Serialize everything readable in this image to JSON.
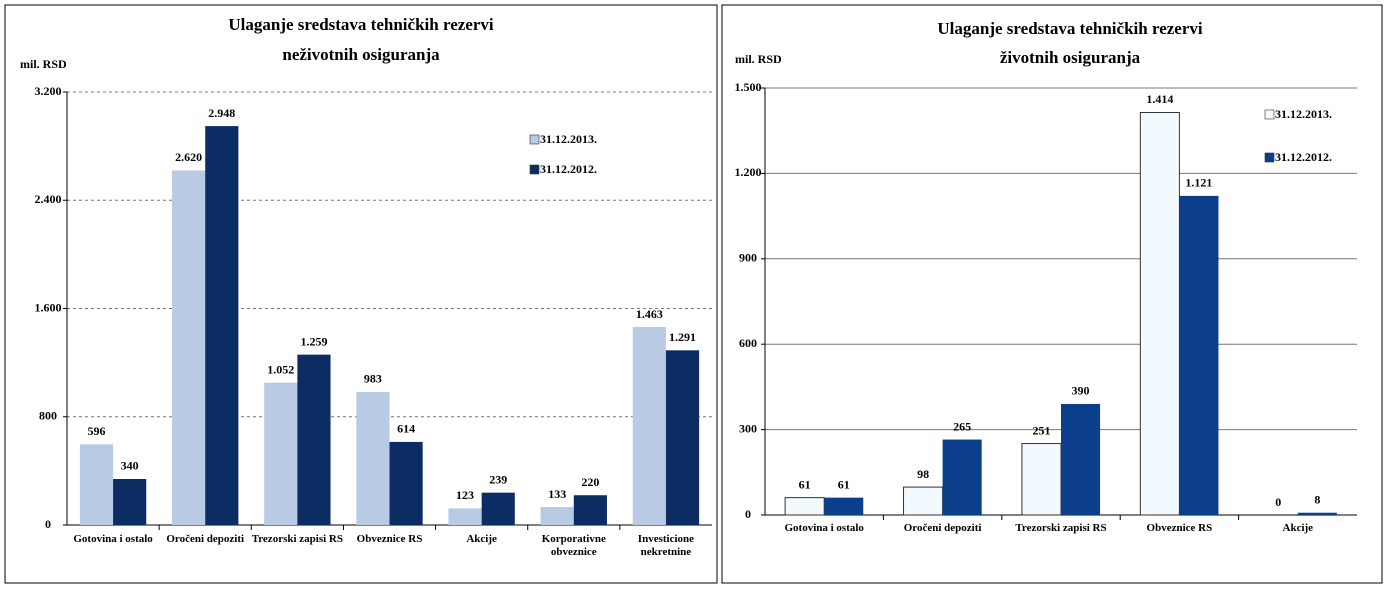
{
  "chart_data": [
    {
      "type": "bar",
      "title": "Ulaganje sredstava tehničkih rezervi",
      "subtitle": "neživotnih osiguranja",
      "y_axis_label": "mil. RSD",
      "categories": [
        "Gotovina i ostalo",
        "Oročeni depoziti",
        "Trezorski zapisi RS",
        "Obveznice RS",
        "Akcije",
        "Korporativne obveznice",
        "Investicione nekretnine"
      ],
      "series": [
        {
          "name": "31.12.2013.",
          "color": "#b9cae4",
          "values": [
            596,
            2620,
            1052,
            983,
            123,
            133,
            1463
          ],
          "value_labels": [
            "596",
            "2.620",
            "1.052",
            "983",
            "123",
            "133",
            "1.463"
          ]
        },
        {
          "name": "31.12.2012.",
          "color": "#0c2d63",
          "values": [
            340,
            2948,
            1259,
            614,
            239,
            220,
            1291
          ],
          "value_labels": [
            "340",
            "2.948",
            "1.259",
            "614",
            "239",
            "220",
            "1.291"
          ]
        }
      ],
      "ylim": [
        0,
        3200
      ],
      "yticks": [
        0,
        800,
        {
          "value": 1600,
          "label": "1.600"
        },
        {
          "value": 2400,
          "label": "2.400"
        },
        {
          "value": 3200,
          "label": "3.200"
        }
      ],
      "grid": true,
      "legend": "upper right"
    },
    {
      "type": "bar",
      "title": "Ulaganje sredstava tehničkih rezervi",
      "subtitle": "životnih osiguranja",
      "y_axis_label": "mil. RSD",
      "categories": [
        "Gotovina i ostalo",
        "Oročeni depoziti",
        "Trezorski zapisi RS",
        "Obveznice RS",
        "Akcije"
      ],
      "series": [
        {
          "name": "31.12.2013.",
          "color": "#f3faff",
          "values": [
            61,
            98,
            251,
            1414,
            0
          ],
          "value_labels": [
            "61",
            "98",
            "251",
            "1.414",
            "0"
          ]
        },
        {
          "name": "31.12.2012.",
          "color": "#0b3f8c",
          "values": [
            61,
            265,
            390,
            1121,
            8
          ],
          "value_labels": [
            "61",
            "265",
            "390",
            "1.121",
            "8"
          ]
        }
      ],
      "ylim": [
        0,
        1500
      ],
      "yticks": [
        0,
        300,
        600,
        900,
        {
          "value": 1200,
          "label": "1.200"
        },
        {
          "value": 1500,
          "label": "1.500"
        }
      ],
      "grid": true,
      "legend": "upper right"
    }
  ]
}
